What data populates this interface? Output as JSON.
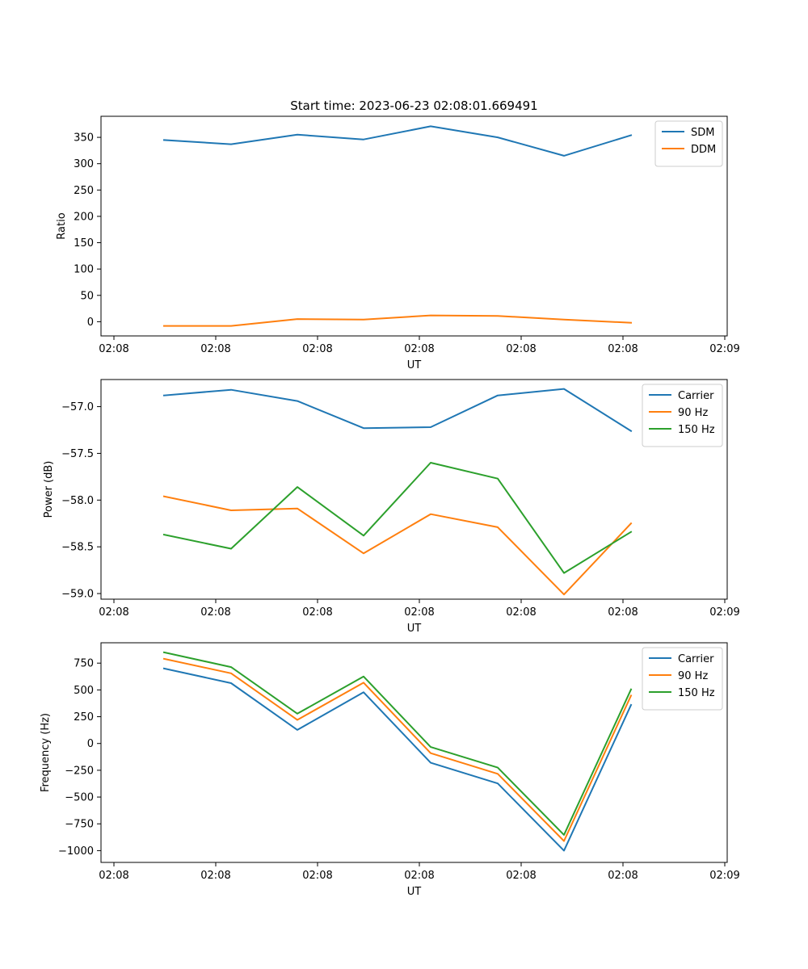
{
  "figure": {
    "title": "Start time: 2023-06-23 02:08:01.669491"
  },
  "chart_data": [
    {
      "type": "line",
      "title": "Start time: 2023-06-23 02:08:01.669491",
      "xlabel": "UT",
      "ylabel": "Ratio",
      "x_ticks": [
        "02:08",
        "02:08",
        "02:08",
        "02:08",
        "02:08",
        "02:08",
        "02:09"
      ],
      "y_ticks": [
        "0",
        "50",
        "100",
        "150",
        "200",
        "250",
        "300",
        "350"
      ],
      "ylim": [
        -27,
        390
      ],
      "grid": false,
      "legend_position": "top-right",
      "series": [
        {
          "name": "SDM",
          "color": "#1f77b4",
          "values": [
            345,
            337,
            355,
            346,
            371,
            350,
            315,
            354
          ]
        },
        {
          "name": "DDM",
          "color": "#ff7f0e",
          "values": [
            -8,
            -8,
            5,
            4,
            12,
            11,
            4,
            -2
          ]
        }
      ]
    },
    {
      "type": "line",
      "title": "",
      "xlabel": "UT",
      "ylabel": "Power (dB)",
      "x_ticks": [
        "02:08",
        "02:08",
        "02:08",
        "02:08",
        "02:08",
        "02:08",
        "02:09"
      ],
      "y_ticks": [
        "−59.0",
        "−58.5",
        "−58.0",
        "−57.5",
        "−57.0"
      ],
      "ylim": [
        -59.06,
        -56.71
      ],
      "grid": false,
      "legend_position": "top-right",
      "series": [
        {
          "name": "Carrier",
          "color": "#1f77b4",
          "values": [
            -56.88,
            -56.82,
            -56.94,
            -57.23,
            -57.22,
            -56.88,
            -56.81,
            -57.26
          ]
        },
        {
          "name": "90 Hz",
          "color": "#ff7f0e",
          "values": [
            -57.96,
            -58.11,
            -58.09,
            -58.57,
            -58.15,
            -58.29,
            -59.01,
            -58.25
          ]
        },
        {
          "name": "150 Hz",
          "color": "#2ca02c",
          "values": [
            -58.37,
            -58.52,
            -57.86,
            -58.38,
            -57.6,
            -57.77,
            -58.78,
            -58.34
          ]
        }
      ]
    },
    {
      "type": "line",
      "title": "",
      "xlabel": "UT",
      "ylabel": "Frequency (Hz)",
      "x_ticks": [
        "02:08",
        "02:08",
        "02:08",
        "02:08",
        "02:08",
        "02:08",
        "02:09"
      ],
      "y_ticks": [
        "−1000",
        "−750",
        "−500",
        "−250",
        "0",
        "250",
        "500",
        "750"
      ],
      "ylim": [
        -1110,
        940
      ],
      "grid": false,
      "legend_position": "top-right",
      "series": [
        {
          "name": "Carrier",
          "color": "#1f77b4",
          "values": [
            700,
            563,
            127,
            478,
            -180,
            -373,
            -1000,
            360
          ]
        },
        {
          "name": "90 Hz",
          "color": "#ff7f0e",
          "values": [
            790,
            655,
            220,
            568,
            -90,
            -283,
            -910,
            447
          ]
        },
        {
          "name": "150 Hz",
          "color": "#2ca02c",
          "values": [
            850,
            713,
            278,
            625,
            -33,
            -225,
            -853,
            505
          ]
        }
      ]
    }
  ]
}
